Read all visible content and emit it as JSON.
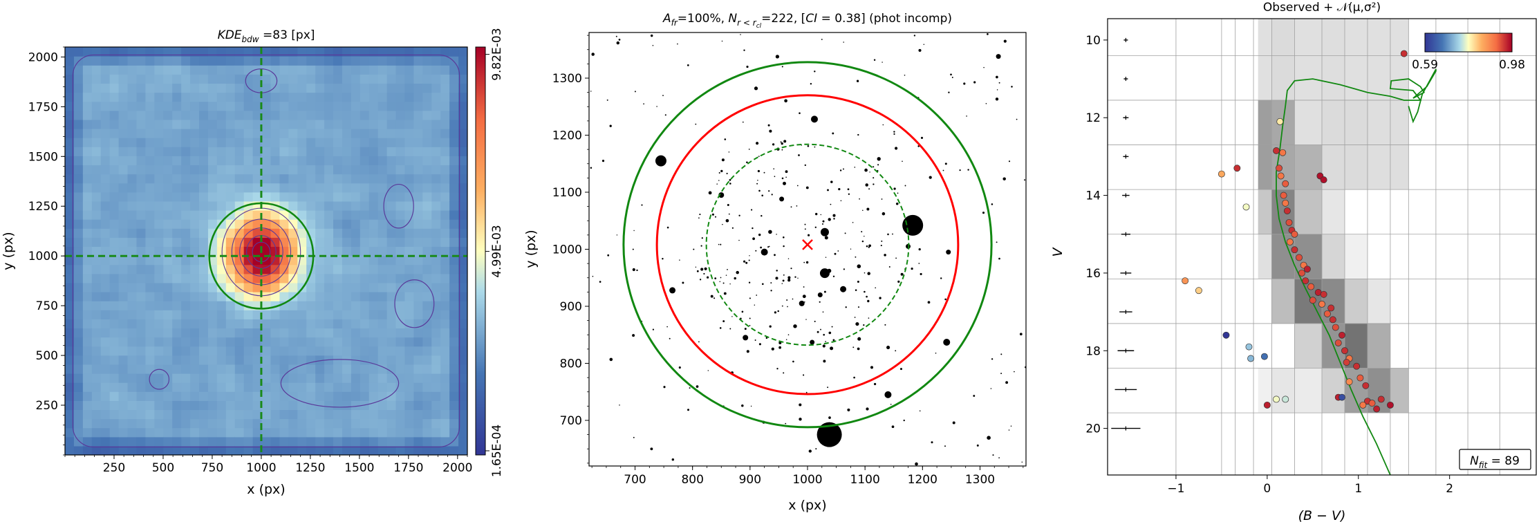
{
  "colors": {
    "center_marker": "#ff0000",
    "contour": "#5a3a9a",
    "core_radius": "#ff0000",
    "crosshair": "#1a8a1a",
    "tidal_radius": "#118811"
  },
  "chart_data": [
    {
      "type": "heatmap",
      "title": "KDE",
      "title_sub": "bdw",
      "title_rest": " =83 [px]",
      "xlabel": "x (px)",
      "ylabel": "y (px)",
      "xlim": [
        0,
        2050
      ],
      "ylim": [
        0,
        2050
      ],
      "xticks": [
        250,
        500,
        750,
        1000,
        1250,
        1500,
        1750,
        2000
      ],
      "yticks": [
        250,
        500,
        750,
        1000,
        1250,
        1500,
        1750,
        2000
      ],
      "center": [
        1000,
        1000
      ],
      "circle_radius": 265,
      "colorbar": {
        "ticks": [
          "1.65E-04",
          "4.99E-03",
          "9.82E-03"
        ],
        "values": [
          0.000165,
          0.00499,
          0.00982
        ]
      },
      "peak": {
        "x": 1000,
        "y": 1010,
        "value": 0.00982
      }
    },
    {
      "type": "scatter",
      "title_parts": [
        "A",
        "fr",
        "=100%, ",
        "N",
        "r < r",
        "cl",
        "=222, [",
        "CI",
        " = 0.38] (phot incomp)"
      ],
      "xlabel": "x (px)",
      "ylabel": "y (px)",
      "xlim": [
        620,
        1380
      ],
      "ylim": [
        620,
        1380
      ],
      "xticks": [
        700,
        800,
        900,
        1000,
        1100,
        1200,
        1300
      ],
      "yticks": [
        700,
        800,
        900,
        1000,
        1100,
        1200,
        1300
      ],
      "center": [
        1000,
        1008
      ],
      "radii": {
        "outer": 320,
        "core": 262,
        "inner_dashed": 176
      },
      "big_stars": [
        {
          "x": 1038,
          "y": 675,
          "size": 18
        },
        {
          "x": 1183,
          "y": 1042,
          "size": 15
        },
        {
          "x": 745,
          "y": 1155,
          "size": 8
        },
        {
          "x": 1030,
          "y": 958,
          "size": 7
        },
        {
          "x": 1030,
          "y": 1030,
          "size": 6
        },
        {
          "x": 1140,
          "y": 745,
          "size": 5
        },
        {
          "x": 1242,
          "y": 837,
          "size": 5
        },
        {
          "x": 1012,
          "y": 1228,
          "size": 5
        },
        {
          "x": 925,
          "y": 995,
          "size": 5
        },
        {
          "x": 1062,
          "y": 930,
          "size": 4.5
        },
        {
          "x": 765,
          "y": 928,
          "size": 4.5
        },
        {
          "x": 990,
          "y": 905,
          "size": 4
        },
        {
          "x": 850,
          "y": 1095,
          "size": 4
        },
        {
          "x": 892,
          "y": 845,
          "size": 4
        },
        {
          "x": 1022,
          "y": 920,
          "size": 3.5
        },
        {
          "x": 955,
          "y": 1088,
          "size": 3.5
        },
        {
          "x": 1332,
          "y": 1338,
          "size": 3.5
        },
        {
          "x": 1008,
          "y": 837,
          "size": 3.5
        },
        {
          "x": 1175,
          "y": 1005,
          "size": 3.5
        },
        {
          "x": 1245,
          "y": 995,
          "size": 3.5
        }
      ],
      "n_faint": 420
    },
    {
      "type": "scatter",
      "title": "Observed + 𝒩(μ,σ²)",
      "xlabel": "(B − V)",
      "ylabel": "V",
      "xlim": [
        -1.75,
        2.95
      ],
      "ylim": [
        21.2,
        9.45
      ],
      "xticks": [
        -1,
        0,
        1,
        2
      ],
      "yticks": [
        10,
        12,
        14,
        16,
        18,
        20
      ],
      "colorbar": {
        "min": 0.59,
        "max": 0.98,
        "labels": [
          "0.59",
          "0.98"
        ]
      },
      "annotation": "N",
      "annotation_sub": "fit",
      "annotation_rest": " = 89",
      "errorbars": [
        {
          "v": 10,
          "err": 0.02
        },
        {
          "v": 11,
          "err": 0.02
        },
        {
          "v": 12,
          "err": 0.03
        },
        {
          "v": 13,
          "err": 0.03
        },
        {
          "v": 14,
          "err": 0.04
        },
        {
          "v": 15,
          "err": 0.05
        },
        {
          "v": 16,
          "err": 0.06
        },
        {
          "v": 17,
          "err": 0.07
        },
        {
          "v": 18,
          "err": 0.09
        },
        {
          "v": 19,
          "err": 0.12
        },
        {
          "v": 20,
          "err": 0.16
        }
      ],
      "grid_x_edges": [
        -1.75,
        -1.0,
        -0.5,
        -0.35,
        -0.15,
        0.05,
        0.3,
        0.6,
        0.85,
        1.1,
        1.35,
        1.55,
        1.85,
        2.2,
        2.55,
        2.95
      ],
      "grid_y_edges": [
        9.45,
        10.4,
        11.55,
        12.7,
        13.85,
        15.0,
        16.15,
        17.3,
        18.45,
        19.6,
        21.2
      ],
      "hess_cells": [
        {
          "c0": -0.1,
          "c1": 0.05,
          "v0": 9.45,
          "v1": 11.55,
          "g": 0.88
        },
        {
          "c0": 0.05,
          "c1": 0.3,
          "v0": 9.45,
          "v1": 11.55,
          "g": 0.86
        },
        {
          "c0": 0.3,
          "c1": 0.6,
          "v0": 9.45,
          "v1": 11.55,
          "g": 0.88
        },
        {
          "c0": 0.6,
          "c1": 0.85,
          "v0": 9.45,
          "v1": 11.55,
          "g": 0.87
        },
        {
          "c0": 0.85,
          "c1": 1.1,
          "v0": 9.45,
          "v1": 11.55,
          "g": 0.88
        },
        {
          "c0": 1.1,
          "c1": 1.55,
          "v0": 9.45,
          "v1": 11.55,
          "g": 0.88
        },
        {
          "c0": -0.1,
          "c1": 0.05,
          "v0": 11.55,
          "v1": 13.85,
          "g": 0.62
        },
        {
          "c0": 0.05,
          "c1": 0.3,
          "v0": 11.55,
          "v1": 13.85,
          "g": 0.66
        },
        {
          "c0": 0.3,
          "c1": 0.6,
          "v0": 11.55,
          "v1": 12.7,
          "g": 0.88
        },
        {
          "c0": 0.3,
          "c1": 0.6,
          "v0": 12.7,
          "v1": 13.85,
          "g": 0.7
        },
        {
          "c0": 0.6,
          "c1": 0.85,
          "v0": 11.55,
          "v1": 13.85,
          "g": 0.86
        },
        {
          "c0": 0.85,
          "c1": 1.1,
          "v0": 11.55,
          "v1": 13.85,
          "g": 0.86
        },
        {
          "c0": 1.1,
          "c1": 1.55,
          "v0": 11.55,
          "v1": 13.85,
          "g": 0.87
        },
        {
          "c0": -0.1,
          "c1": 0.05,
          "v0": 13.85,
          "v1": 15.0,
          "g": 0.78
        },
        {
          "c0": 0.05,
          "c1": 0.3,
          "v0": 13.85,
          "v1": 15.0,
          "g": 0.52
        },
        {
          "c0": 0.3,
          "c1": 0.6,
          "v0": 13.85,
          "v1": 15.0,
          "g": 0.76
        },
        {
          "c0": 0.6,
          "c1": 0.85,
          "v0": 13.85,
          "v1": 15.0,
          "g": 0.9
        },
        {
          "c0": -0.1,
          "c1": 0.05,
          "v0": 15.0,
          "v1": 16.15,
          "g": 0.88
        },
        {
          "c0": 0.05,
          "c1": 0.3,
          "v0": 15.0,
          "v1": 16.15,
          "g": 0.56
        },
        {
          "c0": 0.3,
          "c1": 0.6,
          "v0": 15.0,
          "v1": 16.15,
          "g": 0.56
        },
        {
          "c0": 0.6,
          "c1": 0.85,
          "v0": 15.0,
          "v1": 16.15,
          "g": 0.84
        },
        {
          "c0": 0.85,
          "c1": 1.1,
          "v0": 15.0,
          "v1": 16.15,
          "g": 0.94
        },
        {
          "c0": 0.05,
          "c1": 0.3,
          "v0": 16.15,
          "v1": 17.3,
          "g": 0.74
        },
        {
          "c0": 0.3,
          "c1": 0.6,
          "v0": 16.15,
          "v1": 17.3,
          "g": 0.48
        },
        {
          "c0": 0.6,
          "c1": 0.85,
          "v0": 16.15,
          "v1": 17.3,
          "g": 0.54
        },
        {
          "c0": 0.85,
          "c1": 1.1,
          "v0": 16.15,
          "v1": 17.3,
          "g": 0.8
        },
        {
          "c0": 1.1,
          "c1": 1.35,
          "v0": 16.15,
          "v1": 17.3,
          "g": 0.9
        },
        {
          "c0": 0.3,
          "c1": 0.6,
          "v0": 17.3,
          "v1": 18.45,
          "g": 0.82
        },
        {
          "c0": 0.6,
          "c1": 0.85,
          "v0": 17.3,
          "v1": 18.45,
          "g": 0.58
        },
        {
          "c0": 0.85,
          "c1": 1.1,
          "v0": 17.3,
          "v1": 18.45,
          "g": 0.45
        },
        {
          "c0": 1.1,
          "c1": 1.35,
          "v0": 17.3,
          "v1": 18.45,
          "g": 0.68
        },
        {
          "c0": -0.1,
          "c1": 0.05,
          "v0": 18.45,
          "v1": 19.6,
          "g": 0.94
        },
        {
          "c0": 0.05,
          "c1": 0.3,
          "v0": 18.45,
          "v1": 19.6,
          "g": 0.9
        },
        {
          "c0": 0.3,
          "c1": 0.6,
          "v0": 18.45,
          "v1": 19.6,
          "g": 0.92
        },
        {
          "c0": 0.6,
          "c1": 0.85,
          "v0": 18.45,
          "v1": 19.6,
          "g": 0.82
        },
        {
          "c0": 0.85,
          "c1": 1.1,
          "v0": 18.45,
          "v1": 19.6,
          "g": 0.62
        },
        {
          "c0": 1.1,
          "c1": 1.35,
          "v0": 18.45,
          "v1": 19.6,
          "g": 0.56
        },
        {
          "c0": 1.35,
          "c1": 1.55,
          "v0": 18.45,
          "v1": 19.6,
          "g": 0.74
        }
      ],
      "isochrone": [
        [
          1.35,
          21.2
        ],
        [
          1.2,
          20.4
        ],
        [
          1.05,
          19.7
        ],
        [
          0.92,
          19.0
        ],
        [
          0.8,
          18.3
        ],
        [
          0.68,
          17.6
        ],
        [
          0.55,
          17.0
        ],
        [
          0.42,
          16.4
        ],
        [
          0.3,
          15.8
        ],
        [
          0.2,
          15.2
        ],
        [
          0.13,
          14.6
        ],
        [
          0.1,
          14.0
        ],
        [
          0.1,
          13.4
        ],
        [
          0.14,
          12.8
        ],
        [
          0.17,
          12.2
        ],
        [
          0.2,
          11.7
        ],
        [
          0.22,
          11.3
        ],
        [
          0.3,
          11.05
        ],
        [
          0.5,
          11.0
        ],
        [
          0.8,
          11.15
        ],
        [
          1.1,
          11.35
        ],
        [
          1.35,
          11.45
        ],
        [
          1.5,
          11.55
        ],
        [
          1.68,
          11.55
        ],
        [
          1.6,
          11.3
        ],
        [
          1.35,
          11.25
        ],
        [
          1.36,
          11.05
        ],
        [
          1.55,
          11.0
        ],
        [
          1.68,
          11.2
        ],
        [
          1.72,
          11.35
        ],
        [
          1.6,
          11.5
        ],
        [
          1.75,
          11.2
        ],
        [
          1.85,
          10.8
        ],
        [
          1.85,
          10.75
        ],
        [
          1.7,
          11.4
        ],
        [
          1.65,
          11.85
        ],
        [
          1.6,
          12.1
        ],
        [
          1.55,
          11.7
        ]
      ],
      "points": [
        {
          "bv": 1.5,
          "v": 10.35,
          "p": 0.95
        },
        {
          "bv": 0.14,
          "v": 12.1,
          "p": 0.8
        },
        {
          "bv": 0.1,
          "v": 12.85,
          "p": 0.95
        },
        {
          "bv": 0.17,
          "v": 12.9,
          "p": 0.9
        },
        {
          "bv": -0.33,
          "v": 13.3,
          "p": 0.95
        },
        {
          "bv": -0.5,
          "v": 13.45,
          "p": 0.85
        },
        {
          "bv": 0.13,
          "v": 13.3,
          "p": 0.93
        },
        {
          "bv": 0.15,
          "v": 13.5,
          "p": 0.9
        },
        {
          "bv": 0.2,
          "v": 13.7,
          "p": 0.92
        },
        {
          "bv": 0.58,
          "v": 13.5,
          "p": 0.97
        },
        {
          "bv": 0.62,
          "v": 13.6,
          "p": 0.97
        },
        {
          "bv": 0.18,
          "v": 14.0,
          "p": 0.92
        },
        {
          "bv": 0.2,
          "v": 14.2,
          "p": 0.9
        },
        {
          "bv": -0.23,
          "v": 14.3,
          "p": 0.78
        },
        {
          "bv": 0.22,
          "v": 14.4,
          "p": 0.95
        },
        {
          "bv": 0.24,
          "v": 14.7,
          "p": 0.93
        },
        {
          "bv": 0.27,
          "v": 14.9,
          "p": 0.95
        },
        {
          "bv": 0.3,
          "v": 15.0,
          "p": 0.92
        },
        {
          "bv": 0.25,
          "v": 15.2,
          "p": 0.9
        },
        {
          "bv": 0.3,
          "v": 15.4,
          "p": 0.95
        },
        {
          "bv": 0.35,
          "v": 15.6,
          "p": 0.93
        },
        {
          "bv": 0.4,
          "v": 15.8,
          "p": 0.9
        },
        {
          "bv": 0.44,
          "v": 15.9,
          "p": 0.96
        },
        {
          "bv": 0.38,
          "v": 16.0,
          "p": 0.93
        },
        {
          "bv": 0.42,
          "v": 16.2,
          "p": 0.95
        },
        {
          "bv": 0.48,
          "v": 16.35,
          "p": 0.92
        },
        {
          "bv": 0.56,
          "v": 16.5,
          "p": 0.96
        },
        {
          "bv": 0.62,
          "v": 16.55,
          "p": 0.95
        },
        {
          "bv": 0.5,
          "v": 16.7,
          "p": 0.93
        },
        {
          "bv": 0.6,
          "v": 16.8,
          "p": 0.9
        },
        {
          "bv": 0.7,
          "v": 16.9,
          "p": 0.95
        },
        {
          "bv": 0.66,
          "v": 17.05,
          "p": 0.92
        },
        {
          "bv": 0.72,
          "v": 17.2,
          "p": 0.95
        },
        {
          "bv": 0.75,
          "v": 17.4,
          "p": 0.93
        },
        {
          "bv": 0.82,
          "v": 17.6,
          "p": 0.96
        },
        {
          "bv": 0.78,
          "v": 17.8,
          "p": 0.93
        },
        {
          "bv": 0.85,
          "v": 18.0,
          "p": 0.95
        },
        {
          "bv": 0.9,
          "v": 18.2,
          "p": 0.9
        },
        {
          "bv": 0.87,
          "v": 18.3,
          "p": 0.94
        },
        {
          "bv": 0.98,
          "v": 18.4,
          "p": 0.95
        },
        {
          "bv": 1.02,
          "v": 18.7,
          "p": 0.92
        },
        {
          "bv": 0.9,
          "v": 18.8,
          "p": 0.88
        },
        {
          "bv": 1.08,
          "v": 18.9,
          "p": 0.95
        },
        {
          "bv": 0.78,
          "v": 19.2,
          "p": 0.96
        },
        {
          "bv": 1.1,
          "v": 19.3,
          "p": 0.95
        },
        {
          "bv": 1.15,
          "v": 19.35,
          "p": 0.92
        },
        {
          "bv": 1.05,
          "v": 19.4,
          "p": 0.9
        },
        {
          "bv": 1.25,
          "v": 19.25,
          "p": 0.95
        },
        {
          "bv": 1.35,
          "v": 19.4,
          "p": 0.97
        },
        {
          "bv": 1.2,
          "v": 19.5,
          "p": 0.96
        },
        {
          "bv": 0.82,
          "v": 19.2,
          "p": 0.62
        },
        {
          "bv": -0.9,
          "v": 16.2,
          "p": 0.87
        },
        {
          "bv": -0.75,
          "v": 16.45,
          "p": 0.82
        },
        {
          "bv": -0.45,
          "v": 17.6,
          "p": 0.59
        },
        {
          "bv": -0.2,
          "v": 17.9,
          "p": 0.73
        },
        {
          "bv": -0.18,
          "v": 18.2,
          "p": 0.72
        },
        {
          "bv": -0.03,
          "v": 18.15,
          "p": 0.66
        },
        {
          "bv": 0.0,
          "v": 19.4,
          "p": 0.96
        },
        {
          "bv": 0.1,
          "v": 19.25,
          "p": 0.78
        },
        {
          "bv": 0.2,
          "v": 19.25,
          "p": 0.76
        }
      ]
    }
  ]
}
